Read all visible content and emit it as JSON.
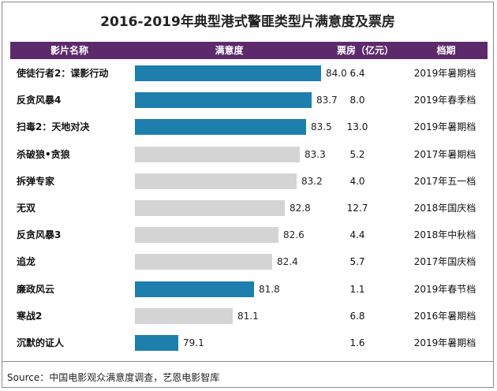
{
  "title": "2016-2019年典型港式警匪类型片满意度及票房",
  "headers": {
    "film": "影片名称",
    "satisfaction": "满意度",
    "box_office": "票房（亿元）",
    "schedule": "档期"
  },
  "colors": {
    "header_bg": "#5c2a6b",
    "highlight": "#1e7fad",
    "normal": "#d4d4d4"
  },
  "chart_data": {
    "type": "bar",
    "title": "2016-2019年典型港式警匪类型片满意度及票房",
    "categories": [
      "使徒行者2：谍影行动",
      "反贪风暴4",
      "扫毒2：天地对决",
      "杀破狼•贪狼",
      "拆弹专家",
      "无双",
      "反贪风暴3",
      "追龙",
      "廉政风云",
      "寒战2",
      "沉默的证人"
    ],
    "series": [
      {
        "name": "满意度",
        "values": [
          84.0,
          83.7,
          83.5,
          83.3,
          83.2,
          82.8,
          82.6,
          82.4,
          81.8,
          81.1,
          79.1
        ]
      }
    ],
    "value_labels": [
      "84.0",
      "83.7",
      "83.5",
      "83.3",
      "83.2",
      "82.8",
      "82.6",
      "82.4",
      "81.8",
      "81.1",
      "79.1"
    ],
    "highlighted": [
      true,
      true,
      true,
      false,
      false,
      false,
      false,
      false,
      true,
      false,
      true
    ],
    "box_office": [
      "6.4",
      "8.0",
      "13.0",
      "5.2",
      "4.0",
      "12.7",
      "4.4",
      "5.7",
      "1.1",
      "6.8",
      "1.6"
    ],
    "schedule": [
      "2019年暑期档",
      "2019年春季档",
      "2019年暑期档",
      "2017年暑期档",
      "2017年五一档",
      "2018年国庆档",
      "2018年中秋档",
      "2017年国庆档",
      "2019年春节档",
      "2016年暑期档",
      "2019年暑期档"
    ]
  },
  "source": "Source：中国电影观众满意度调查，艺恩电影智库"
}
